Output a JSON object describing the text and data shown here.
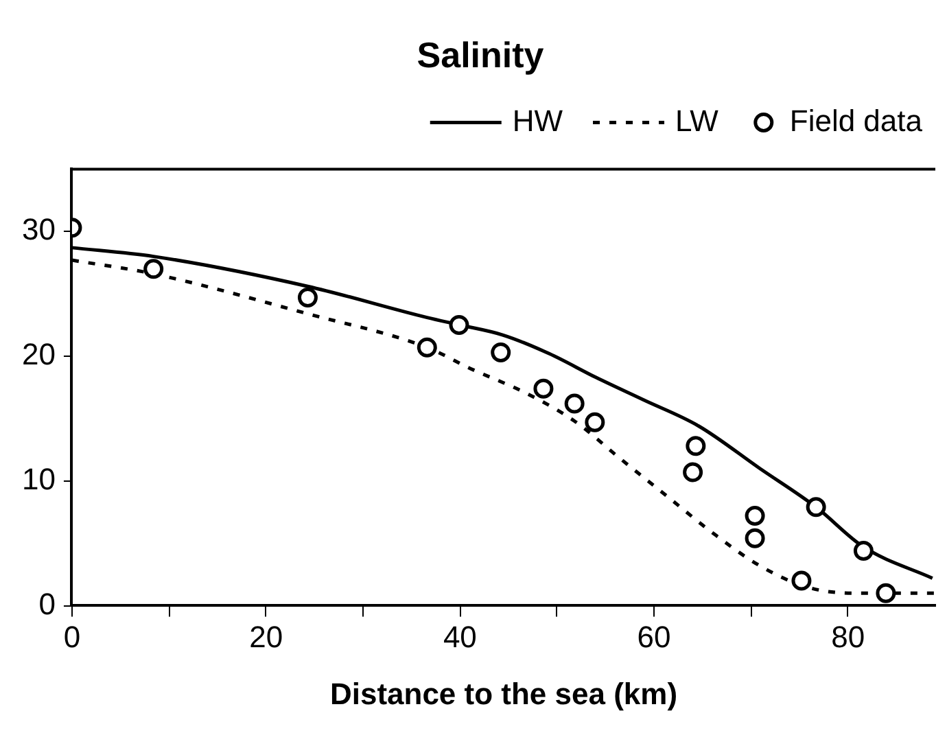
{
  "chart_data": {
    "type": "line",
    "title": "Salinity",
    "xlabel": "Distance to the sea (km)",
    "xlim": [
      0,
      89
    ],
    "xticks": [
      0,
      {
        "value": 10,
        "label": null
      },
      20,
      {
        "value": 30,
        "label": null
      },
      40,
      {
        "value": 50,
        "label": null
      },
      60,
      {
        "value": 70,
        "label": null
      },
      80
    ],
    "ylim": [
      0,
      35
    ],
    "yticks": [
      0,
      10,
      20,
      30
    ],
    "legend": "top",
    "series": [
      {
        "name": "HW",
        "color": "#000000",
        "line_style": "solid",
        "marker": "none",
        "x": [
          0,
          8.4,
          24.3,
          36.6,
          40,
          44.4,
          49.2,
          54,
          58.9,
          64.6,
          70.9,
          76.7,
          81.6,
          88.7
        ],
        "values": [
          28.7,
          28,
          25.6,
          23.1,
          22.5,
          21.7,
          20.2,
          18.3,
          16.5,
          14.4,
          11,
          7.9,
          4.7,
          2.2
        ]
      },
      {
        "name": "LW",
        "color": "#000000",
        "line_style": "dashed",
        "marker": "none",
        "x": [
          0,
          8.4,
          24.3,
          36.6,
          41.1,
          46.9,
          51.8,
          56.5,
          61.3,
          66.1,
          70.9,
          75.7,
          80.5,
          89
        ],
        "values": [
          27.7,
          26.6,
          23.4,
          20.7,
          19,
          17,
          14.8,
          11.8,
          8.8,
          5.8,
          3.2,
          1.5,
          1,
          1
        ]
      },
      {
        "name": "Field data",
        "type": "scatter",
        "color": "#000000",
        "marker": "circle",
        "x": [
          0,
          8.4,
          24.3,
          36.6,
          39.9,
          44.2,
          48.6,
          51.8,
          53.9,
          64.3,
          64,
          70.4,
          70.4,
          76.7,
          75.2,
          81.6,
          83.9
        ],
        "values": [
          30.3,
          27,
          24.7,
          20.7,
          22.5,
          20.3,
          17.4,
          16.2,
          14.7,
          12.8,
          10.7,
          7.2,
          5.4,
          7.9,
          2,
          4.4,
          1
        ]
      }
    ]
  }
}
